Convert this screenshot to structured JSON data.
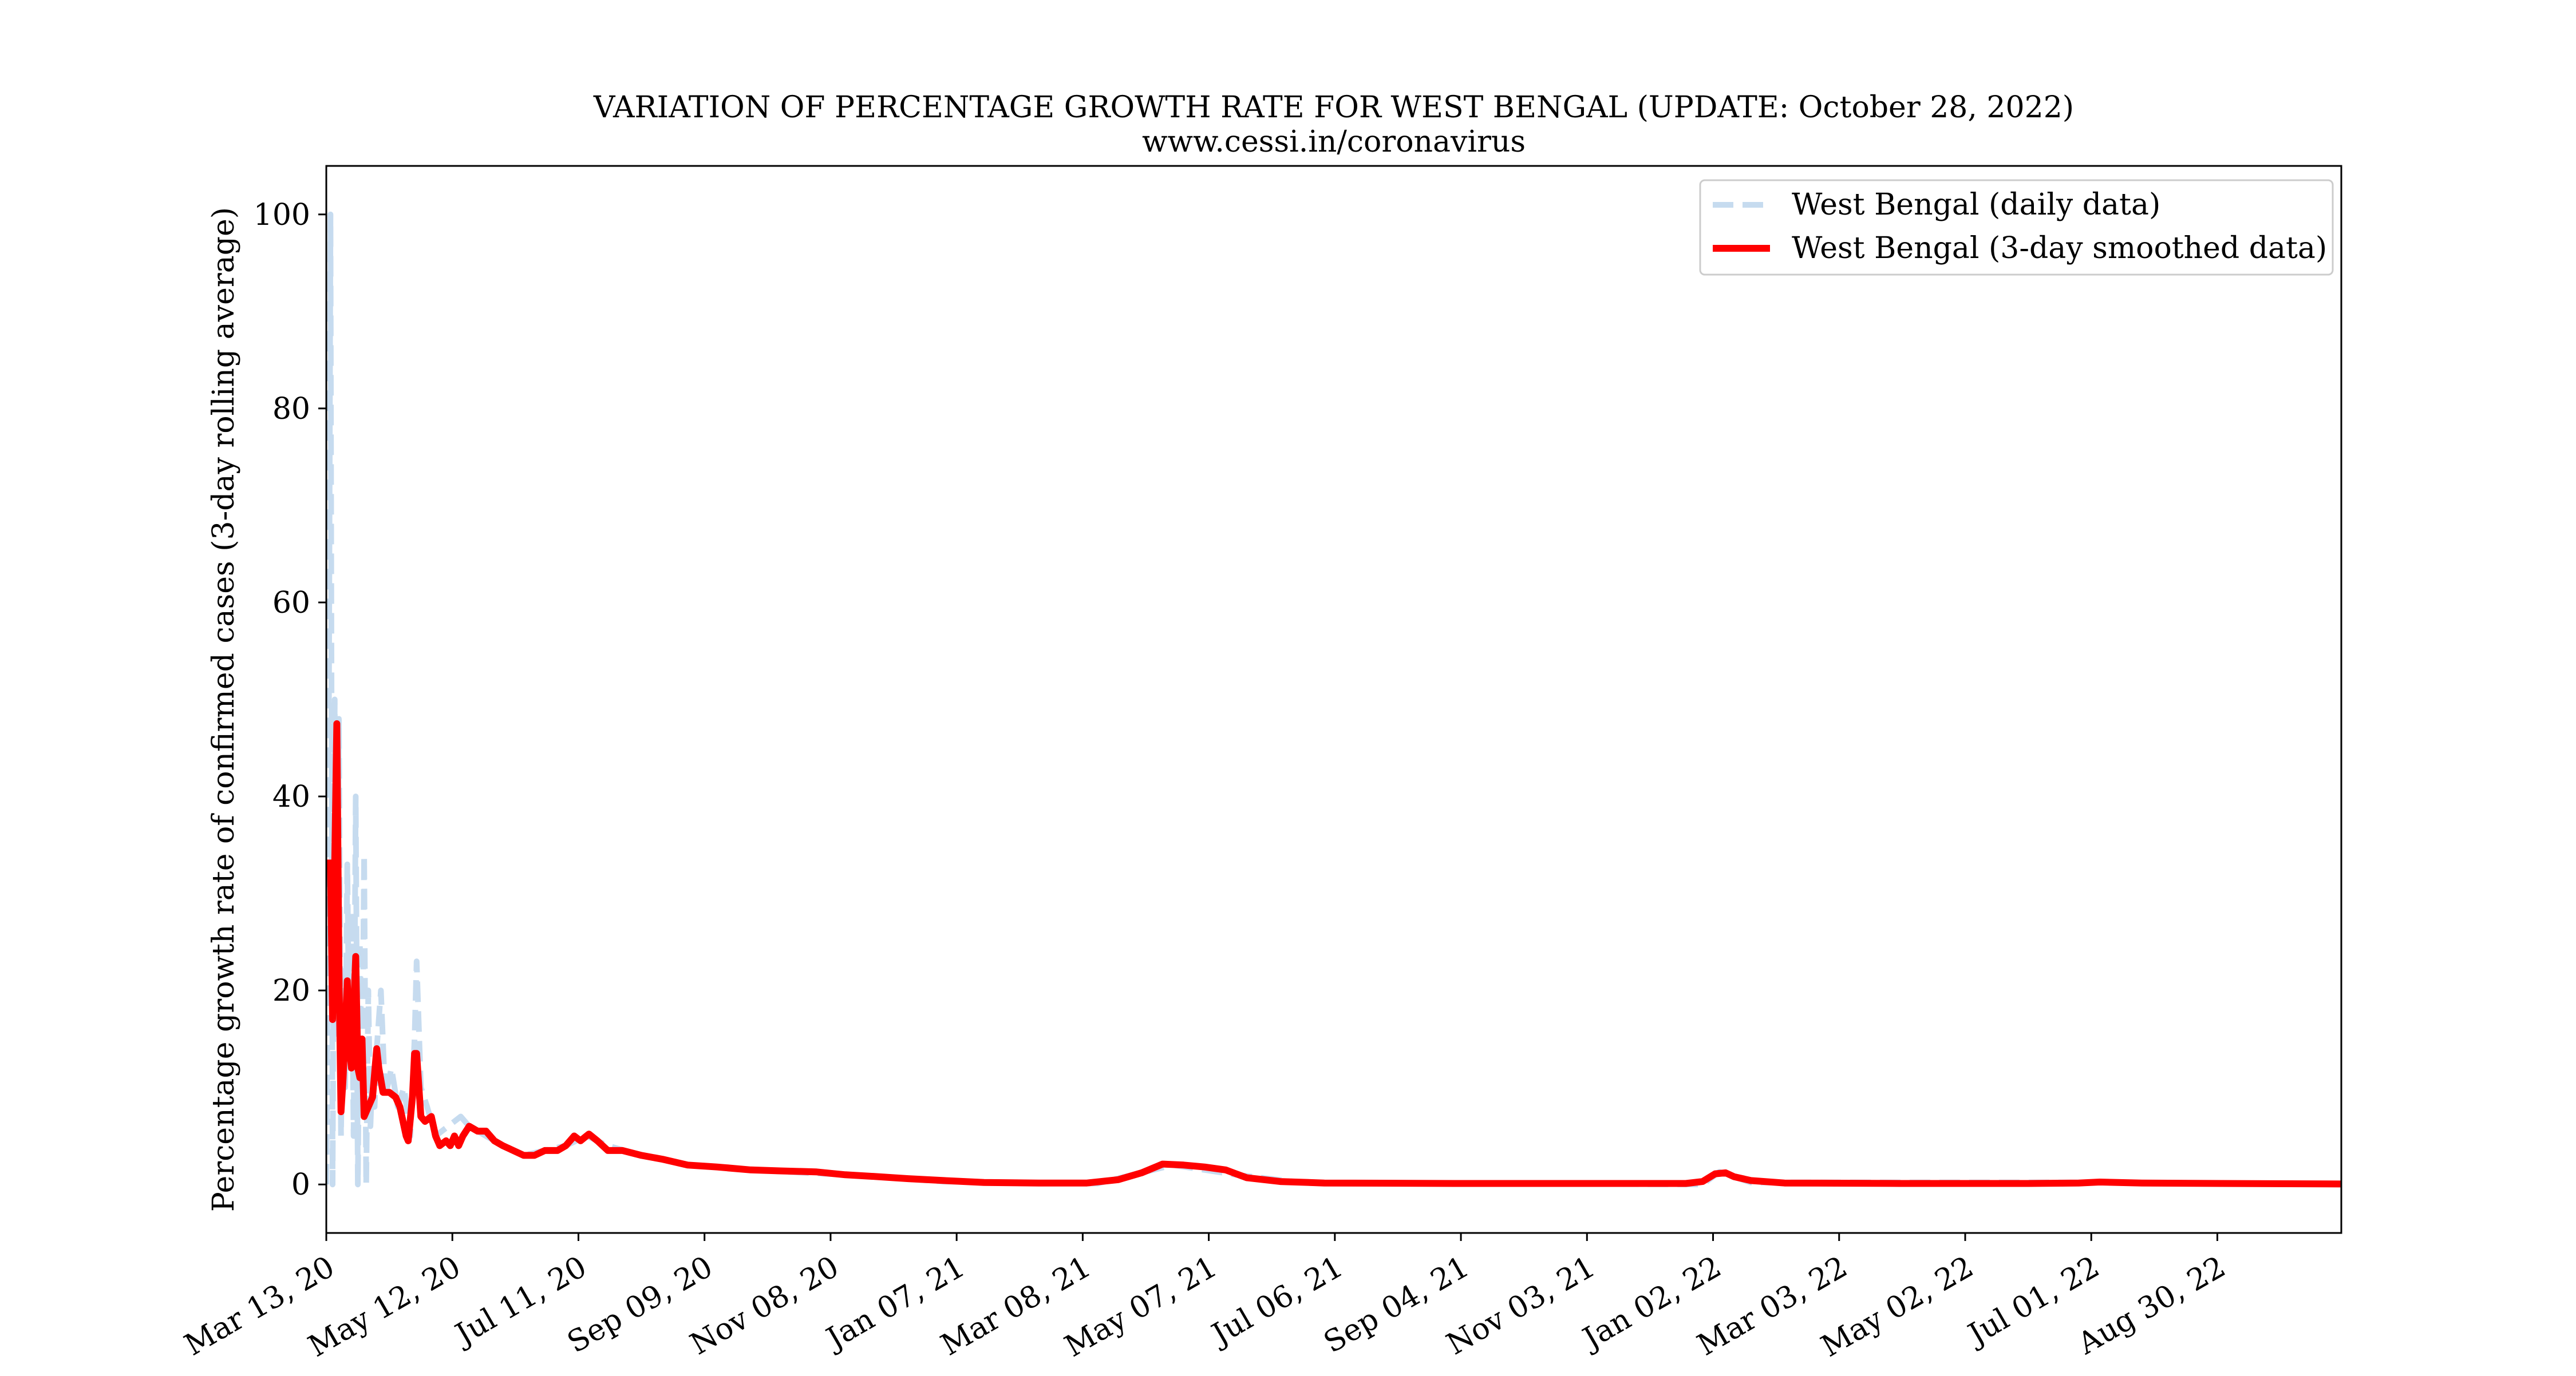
{
  "chart_data": {
    "type": "line",
    "title": "VARIATION OF PERCENTAGE GROWTH RATE FOR WEST BENGAL (UPDATE: October 28, 2022)",
    "subtitle": "www.cessi.in/coronavirus",
    "xlabel": "",
    "ylabel": "Percentage growth rate of confirmed cases (3-day rolling average)",
    "x_ticks": [
      "Mar 13, 20",
      "May 12, 20",
      "Jul 11, 20",
      "Sep 09, 20",
      "Nov 08, 20",
      "Jan 07, 21",
      "Mar 08, 21",
      "May 07, 21",
      "Jul 06, 21",
      "Sep 04, 21",
      "Nov 03, 21",
      "Jan 02, 22",
      "Mar 03, 22",
      "May 02, 22",
      "Jul 01, 22",
      "Aug 30, 22"
    ],
    "y_ticks": [
      "0",
      "20",
      "40",
      "60",
      "80",
      "100"
    ],
    "xlim": [
      "2020-03-13",
      "2022-10-28"
    ],
    "ylim": [
      -5,
      105
    ],
    "grid": false,
    "legend_position": "top-right",
    "series": [
      {
        "name": "West Bengal (daily data)",
        "color": "#c6dbef",
        "style": "dashed",
        "points": [
          [
            "2020-03-13",
            0
          ],
          [
            "2020-03-14",
            33
          ],
          [
            "2020-03-15",
            100
          ],
          [
            "2020-03-16",
            0
          ],
          [
            "2020-03-17",
            50
          ],
          [
            "2020-03-18",
            15
          ],
          [
            "2020-03-19",
            48
          ],
          [
            "2020-03-20",
            5
          ],
          [
            "2020-03-21",
            22
          ],
          [
            "2020-03-22",
            10
          ],
          [
            "2020-03-23",
            33
          ],
          [
            "2020-03-24",
            12
          ],
          [
            "2020-03-25",
            28
          ],
          [
            "2020-03-26",
            5
          ],
          [
            "2020-03-27",
            40
          ],
          [
            "2020-03-28",
            0
          ],
          [
            "2020-03-29",
            25
          ],
          [
            "2020-03-30",
            8
          ],
          [
            "2020-03-31",
            34
          ],
          [
            "2020-04-01",
            0
          ],
          [
            "2020-04-02",
            20
          ],
          [
            "2020-04-03",
            6
          ],
          [
            "2020-04-04",
            12
          ],
          [
            "2020-04-05",
            8
          ],
          [
            "2020-04-06",
            14
          ],
          [
            "2020-04-08",
            20
          ],
          [
            "2020-04-10",
            9
          ],
          [
            "2020-04-13",
            12
          ],
          [
            "2020-04-16",
            8
          ],
          [
            "2020-04-19",
            10
          ],
          [
            "2020-04-22",
            5
          ],
          [
            "2020-04-24",
            15
          ],
          [
            "2020-04-25",
            23
          ],
          [
            "2020-04-27",
            10
          ],
          [
            "2020-04-30",
            8
          ],
          [
            "2020-05-04",
            5
          ],
          [
            "2020-05-10",
            6
          ],
          [
            "2020-05-16",
            7
          ],
          [
            "2020-05-20",
            6
          ],
          [
            "2020-05-28",
            5
          ],
          [
            "2020-06-05",
            4
          ],
          [
            "2020-06-15",
            3
          ],
          [
            "2020-06-25",
            3.5
          ],
          [
            "2020-07-05",
            4
          ],
          [
            "2020-07-15",
            5
          ],
          [
            "2020-07-25",
            4
          ],
          [
            "2020-08-10",
            3
          ],
          [
            "2020-09-01",
            2
          ],
          [
            "2020-10-01",
            1.5
          ],
          [
            "2020-11-15",
            1
          ],
          [
            "2021-01-01",
            0.3
          ],
          [
            "2021-03-15",
            0.1
          ],
          [
            "2021-04-20",
            2
          ],
          [
            "2021-05-20",
            1
          ],
          [
            "2021-06-20",
            0.2
          ],
          [
            "2021-12-28",
            0
          ],
          [
            "2022-01-05",
            1.3
          ],
          [
            "2022-01-20",
            0.2
          ],
          [
            "2022-07-01",
            0.2
          ],
          [
            "2022-10-28",
            0
          ]
        ]
      },
      {
        "name": "West Bengal (3-day smoothed data)",
        "color": "#ff0000",
        "style": "solid",
        "points": [
          [
            "2020-03-15",
            33.5
          ],
          [
            "2020-03-16",
            17
          ],
          [
            "2020-03-17",
            33
          ],
          [
            "2020-03-18",
            47.5
          ],
          [
            "2020-03-19",
            22.5
          ],
          [
            "2020-03-20",
            7.5
          ],
          [
            "2020-03-21",
            11
          ],
          [
            "2020-03-22",
            16
          ],
          [
            "2020-03-23",
            21
          ],
          [
            "2020-03-24",
            14
          ],
          [
            "2020-03-25",
            12
          ],
          [
            "2020-03-26",
            18
          ],
          [
            "2020-03-27",
            23.5
          ],
          [
            "2020-03-28",
            12
          ],
          [
            "2020-03-29",
            11
          ],
          [
            "2020-03-30",
            15
          ],
          [
            "2020-03-31",
            7
          ],
          [
            "2020-04-02",
            8
          ],
          [
            "2020-04-04",
            9
          ],
          [
            "2020-04-06",
            14
          ],
          [
            "2020-04-07",
            12
          ],
          [
            "2020-04-09",
            9.5
          ],
          [
            "2020-04-12",
            9.5
          ],
          [
            "2020-04-15",
            9
          ],
          [
            "2020-04-17",
            8
          ],
          [
            "2020-04-20",
            5
          ],
          [
            "2020-04-21",
            4.5
          ],
          [
            "2020-04-23",
            9
          ],
          [
            "2020-04-24",
            13.5
          ],
          [
            "2020-04-25",
            13.5
          ],
          [
            "2020-04-27",
            7
          ],
          [
            "2020-04-29",
            6.5
          ],
          [
            "2020-05-02",
            7
          ],
          [
            "2020-05-04",
            5
          ],
          [
            "2020-05-06",
            4
          ],
          [
            "2020-05-09",
            4.5
          ],
          [
            "2020-05-11",
            4
          ],
          [
            "2020-05-13",
            5
          ],
          [
            "2020-05-15",
            4
          ],
          [
            "2020-05-17",
            5
          ],
          [
            "2020-05-20",
            6
          ],
          [
            "2020-05-24",
            5.5
          ],
          [
            "2020-05-28",
            5.5
          ],
          [
            "2020-06-01",
            4.5
          ],
          [
            "2020-06-05",
            4
          ],
          [
            "2020-06-10",
            3.5
          ],
          [
            "2020-06-15",
            3
          ],
          [
            "2020-06-20",
            3
          ],
          [
            "2020-06-25",
            3.5
          ],
          [
            "2020-07-01",
            3.5
          ],
          [
            "2020-07-05",
            4
          ],
          [
            "2020-07-09",
            5
          ],
          [
            "2020-07-12",
            4.5
          ],
          [
            "2020-07-16",
            5.2
          ],
          [
            "2020-07-20",
            4.5
          ],
          [
            "2020-07-25",
            3.5
          ],
          [
            "2020-08-01",
            3.5
          ],
          [
            "2020-08-10",
            3
          ],
          [
            "2020-08-20",
            2.6
          ],
          [
            "2020-09-01",
            2
          ],
          [
            "2020-09-15",
            1.8
          ],
          [
            "2020-10-01",
            1.5
          ],
          [
            "2020-10-15",
            1.4
          ],
          [
            "2020-11-01",
            1.3
          ],
          [
            "2020-11-15",
            1
          ],
          [
            "2020-12-01",
            0.8
          ],
          [
            "2020-12-15",
            0.6
          ],
          [
            "2021-01-01",
            0.4
          ],
          [
            "2021-01-20",
            0.2
          ],
          [
            "2021-02-15",
            0.15
          ],
          [
            "2021-03-10",
            0.15
          ],
          [
            "2021-03-25",
            0.5
          ],
          [
            "2021-04-05",
            1.2
          ],
          [
            "2021-04-15",
            2.1
          ],
          [
            "2021-04-25",
            2
          ],
          [
            "2021-05-05",
            1.8
          ],
          [
            "2021-05-15",
            1.5
          ],
          [
            "2021-05-25",
            0.7
          ],
          [
            "2021-06-10",
            0.3
          ],
          [
            "2021-07-01",
            0.15
          ],
          [
            "2021-09-01",
            0.1
          ],
          [
            "2021-11-01",
            0.1
          ],
          [
            "2021-12-20",
            0.1
          ],
          [
            "2021-12-28",
            0.3
          ],
          [
            "2022-01-03",
            1.1
          ],
          [
            "2022-01-08",
            1.2
          ],
          [
            "2022-01-12",
            0.8
          ],
          [
            "2022-01-20",
            0.4
          ],
          [
            "2022-02-05",
            0.15
          ],
          [
            "2022-04-01",
            0.1
          ],
          [
            "2022-06-01",
            0.1
          ],
          [
            "2022-06-25",
            0.15
          ],
          [
            "2022-07-05",
            0.25
          ],
          [
            "2022-07-25",
            0.15
          ],
          [
            "2022-09-01",
            0.1
          ],
          [
            "2022-10-28",
            0.05
          ]
        ]
      }
    ]
  }
}
